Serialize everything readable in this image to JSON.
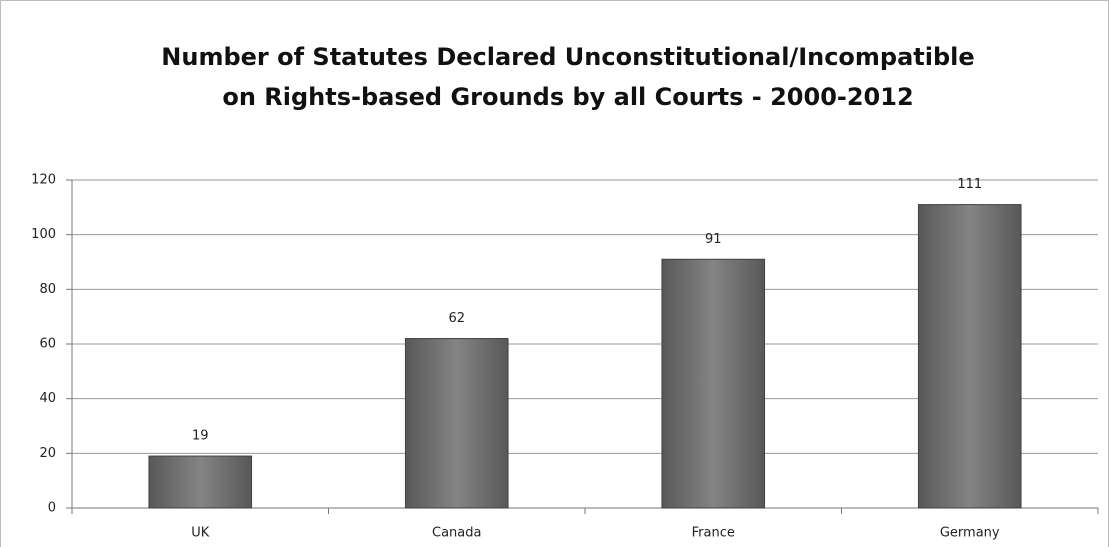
{
  "chart_data": {
    "type": "bar",
    "title": [
      "Number of Statutes Declared Unconstitutional/Incompatible",
      "on Rights-based Grounds by all Courts - 2000-2012"
    ],
    "categories": [
      "UK",
      "Canada",
      "France",
      "Germany"
    ],
    "values": [
      19,
      62,
      91,
      111
    ],
    "color": "#6e6e6e",
    "ylim": [
      0,
      120
    ],
    "yticks": [
      0,
      20,
      40,
      60,
      80,
      100,
      120
    ],
    "grid": true
  }
}
